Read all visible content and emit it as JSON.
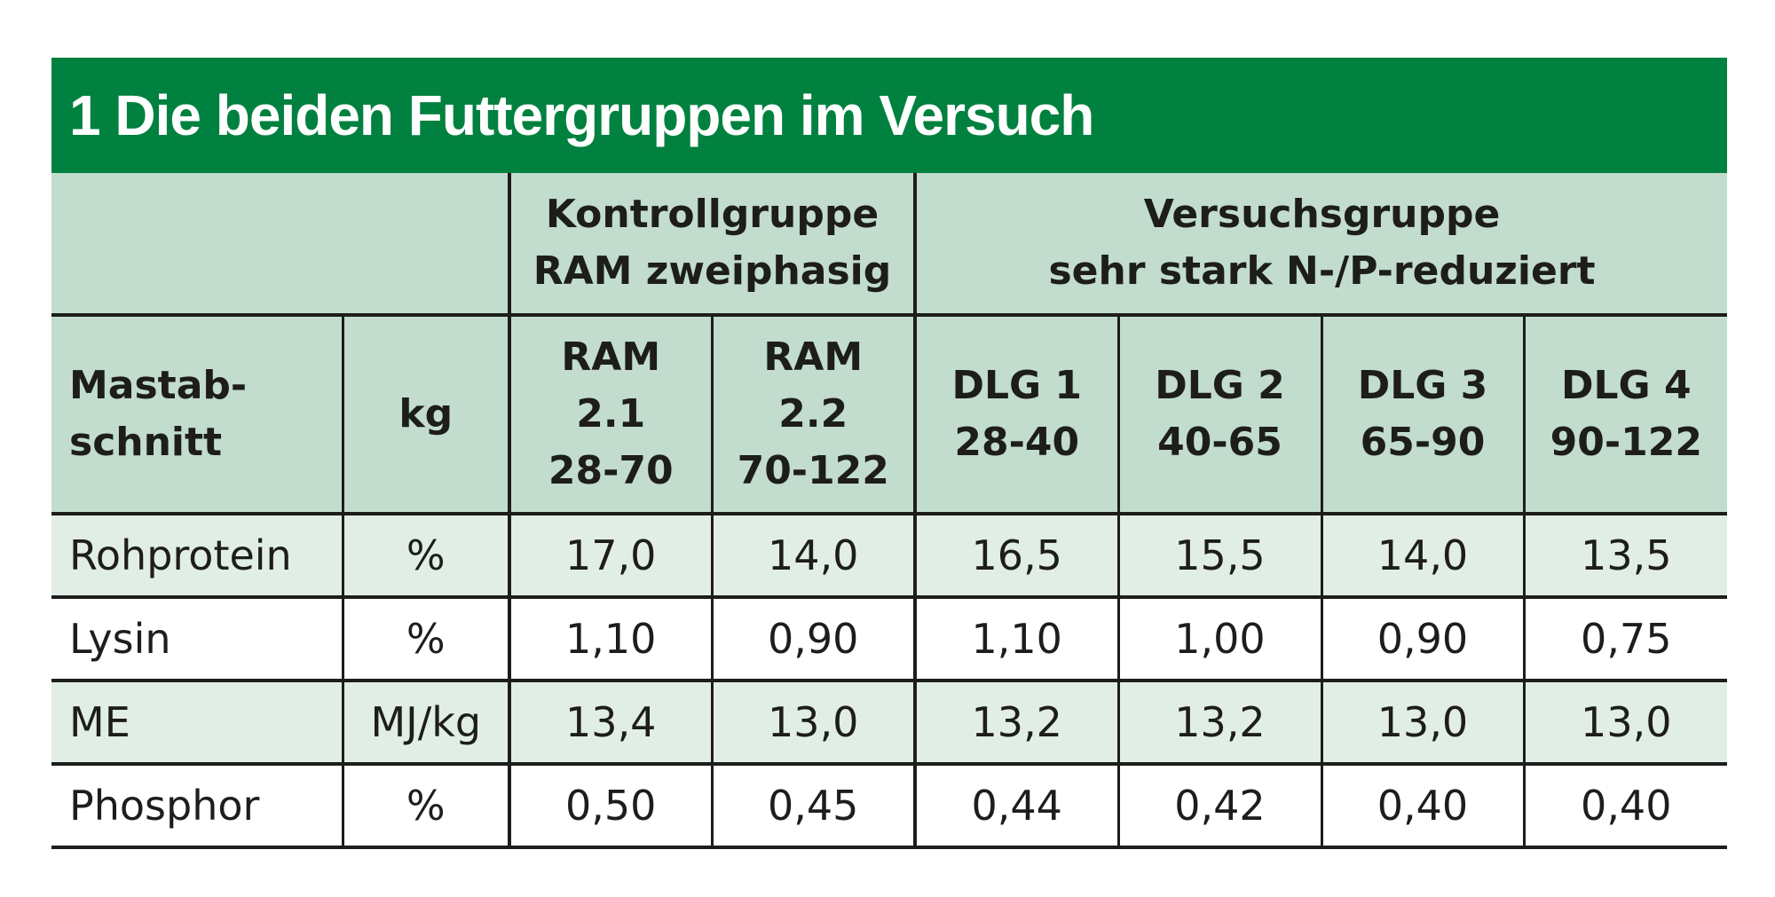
{
  "title": "1 Die beiden Futtergruppen im Versuch",
  "header_groups": [
    {
      "line1": "Kontrollgruppe",
      "line2": "RAM zweiphasig"
    },
    {
      "line1": "Versuchsgruppe",
      "line2": "sehr stark N-/P-reduziert"
    }
  ],
  "subheaders": {
    "row_label": {
      "line1": "Mastab-",
      "line2": "schnitt"
    },
    "unit": "kg",
    "phases": [
      {
        "l1": "RAM",
        "l2": "2.1",
        "l3": "28-70"
      },
      {
        "l1": "RAM",
        "l2": "2.2",
        "l3": "70-122"
      },
      {
        "l1": "DLG 1",
        "l2": "28-40"
      },
      {
        "l1": "DLG 2",
        "l2": "40-65"
      },
      {
        "l1": "DLG 3",
        "l2": "65-90"
      },
      {
        "l1": "DLG 4",
        "l2": "90-122"
      }
    ]
  },
  "rows": [
    {
      "label": "Rohprotein",
      "unit": "%",
      "values": [
        "17,0",
        "14,0",
        "16,5",
        "15,5",
        "14,0",
        "13,5"
      ]
    },
    {
      "label": "Lysin",
      "unit": "%",
      "values": [
        "1,10",
        "0,90",
        "1,10",
        "1,00",
        "0,90",
        "0,75"
      ]
    },
    {
      "label": "ME",
      "unit": "MJ/kg",
      "values": [
        "13,4",
        "13,0",
        "13,2",
        "13,2",
        "13,0",
        "13,0"
      ]
    },
    {
      "label": "Phosphor",
      "unit": "%",
      "values": [
        "0,50",
        "0,45",
        "0,44",
        "0,42",
        "0,40",
        "0,40"
      ]
    }
  ],
  "colors": {
    "title_bg": "#00813f",
    "header_bg": "#c2dccd",
    "row_shade": "#e1eee6",
    "rule": "#1d1d1b"
  }
}
